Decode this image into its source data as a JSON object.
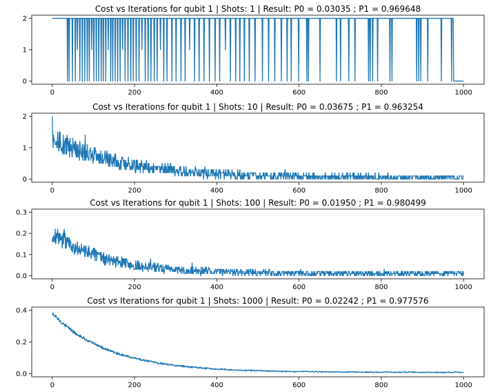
{
  "figure": {
    "background": "#ffffff",
    "line_color": "#1f77b4"
  },
  "chart_data": [
    {
      "type": "line",
      "title": "Cost vs Iterations for qubit 1 | Shots: 1 | Result: P0 = 0.03035 ; P1 = 0.969648",
      "xlabel": "",
      "ylabel": "",
      "xlim": [
        0,
        1000
      ],
      "ylim": [
        0,
        2
      ],
      "xticks": [
        0,
        200,
        400,
        600,
        800,
        1000
      ],
      "yticks": [
        0,
        1,
        2
      ],
      "grid": false,
      "series": [
        {
          "description": "cost alternates between 2 and 0 (spikes down to 0, occasionally 1); stays at 2 until ~36, then frequent 0 values, sparser after ~500, ends at 0 after ~980",
          "points": [
            [
              0,
              2
            ],
            [
              36,
              2
            ],
            [
              37,
              0
            ],
            [
              38,
              2
            ],
            [
              40,
              2
            ],
            [
              41,
              0
            ],
            [
              42,
              2
            ],
            [
              48,
              2
            ],
            [
              49,
              0
            ],
            [
              50,
              2
            ],
            [
              55,
              2
            ],
            [
              56,
              0
            ],
            [
              57,
              2
            ],
            [
              60,
              2
            ],
            [
              61,
              1
            ],
            [
              62,
              2
            ],
            [
              66,
              2
            ],
            [
              67,
              0
            ],
            [
              68,
              2
            ],
            [
              72,
              2
            ],
            [
              73,
              0
            ],
            [
              74,
              2
            ],
            [
              78,
              2
            ],
            [
              79,
              0
            ],
            [
              80,
              2
            ],
            [
              84,
              2
            ],
            [
              85,
              0
            ],
            [
              86,
              2
            ],
            [
              89,
              2
            ],
            [
              90,
              0
            ],
            [
              91,
              2
            ],
            [
              95,
              2
            ],
            [
              96,
              1
            ],
            [
              97,
              2
            ],
            [
              100,
              2
            ],
            [
              101,
              0
            ],
            [
              102,
              2
            ],
            [
              106,
              2
            ],
            [
              107,
              0
            ],
            [
              108,
              2
            ],
            [
              112,
              2
            ],
            [
              113,
              0
            ],
            [
              114,
              2
            ],
            [
              118,
              2
            ],
            [
              119,
              0
            ],
            [
              120,
              2
            ],
            [
              123,
              2
            ],
            [
              124,
              0
            ],
            [
              125,
              2
            ],
            [
              129,
              2
            ],
            [
              130,
              0
            ],
            [
              131,
              2
            ],
            [
              135,
              2
            ],
            [
              136,
              1
            ],
            [
              137,
              2
            ],
            [
              141,
              2
            ],
            [
              142,
              0
            ],
            [
              143,
              2
            ],
            [
              146,
              2
            ],
            [
              147,
              0
            ],
            [
              148,
              2
            ],
            [
              152,
              2
            ],
            [
              153,
              0
            ],
            [
              154,
              2
            ],
            [
              158,
              2
            ],
            [
              159,
              0
            ],
            [
              160,
              2
            ],
            [
              164,
              2
            ],
            [
              165,
              0
            ],
            [
              166,
              2
            ],
            [
              170,
              2
            ],
            [
              171,
              1
            ],
            [
              172,
              2
            ],
            [
              176,
              2
            ],
            [
              177,
              0
            ],
            [
              178,
              2
            ],
            [
              183,
              2
            ],
            [
              184,
              0
            ],
            [
              185,
              2
            ],
            [
              190,
              2
            ],
            [
              191,
              0
            ],
            [
              192,
              2
            ],
            [
              196,
              2
            ],
            [
              197,
              0
            ],
            [
              198,
              2
            ],
            [
              203,
              2
            ],
            [
              204,
              0
            ],
            [
              205,
              2
            ],
            [
              210,
              2
            ],
            [
              211,
              0
            ],
            [
              212,
              2
            ],
            [
              217,
              2
            ],
            [
              218,
              1
            ],
            [
              219,
              2
            ],
            [
              225,
              2
            ],
            [
              226,
              0
            ],
            [
              227,
              2
            ],
            [
              232,
              2
            ],
            [
              233,
              0
            ],
            [
              234,
              2
            ],
            [
              239,
              2
            ],
            [
              240,
              0
            ],
            [
              241,
              2
            ],
            [
              247,
              2
            ],
            [
              248,
              0
            ],
            [
              249,
              2
            ],
            [
              254,
              2
            ],
            [
              255,
              0
            ],
            [
              256,
              2
            ],
            [
              262,
              2
            ],
            [
              263,
              1
            ],
            [
              264,
              2
            ],
            [
              270,
              2
            ],
            [
              271,
              0
            ],
            [
              272,
              2
            ],
            [
              278,
              2
            ],
            [
              279,
              0
            ],
            [
              280,
              2
            ],
            [
              290,
              2
            ],
            [
              291,
              0
            ],
            [
              292,
              2
            ],
            [
              300,
              2
            ],
            [
              301,
              0
            ],
            [
              302,
              2
            ],
            [
              312,
              2
            ],
            [
              313,
              0
            ],
            [
              314,
              2
            ],
            [
              322,
              2
            ],
            [
              323,
              0
            ],
            [
              324,
              2
            ],
            [
              333,
              2
            ],
            [
              334,
              1
            ],
            [
              335,
              2
            ],
            [
              345,
              2
            ],
            [
              346,
              0
            ],
            [
              347,
              2
            ],
            [
              356,
              2
            ],
            [
              357,
              0
            ],
            [
              358,
              2
            ],
            [
              368,
              2
            ],
            [
              369,
              0
            ],
            [
              370,
              2
            ],
            [
              381,
              2
            ],
            [
              382,
              0
            ],
            [
              383,
              2
            ],
            [
              395,
              2
            ],
            [
              396,
              0
            ],
            [
              397,
              2
            ],
            [
              406,
              2
            ],
            [
              407,
              0
            ],
            [
              408,
              2
            ],
            [
              420,
              2
            ],
            [
              421,
              1
            ],
            [
              422,
              2
            ],
            [
              432,
              2
            ],
            [
              433,
              0
            ],
            [
              434,
              2
            ],
            [
              445,
              2
            ],
            [
              446,
              0
            ],
            [
              447,
              2
            ],
            [
              455,
              2
            ],
            [
              456,
              0
            ],
            [
              457,
              2
            ],
            [
              466,
              2
            ],
            [
              467,
              0
            ],
            [
              468,
              2
            ],
            [
              478,
              2
            ],
            [
              479,
              0
            ],
            [
              480,
              2
            ],
            [
              492,
              2
            ],
            [
              493,
              0
            ],
            [
              494,
              2
            ],
            [
              510,
              2
            ],
            [
              511,
              0
            ],
            [
              512,
              2
            ],
            [
              525,
              2
            ],
            [
              526,
              0
            ],
            [
              527,
              2
            ],
            [
              540,
              2
            ],
            [
              541,
              0
            ],
            [
              542,
              2
            ],
            [
              556,
              2
            ],
            [
              557,
              0
            ],
            [
              558,
              2
            ],
            [
              570,
              2
            ],
            [
              571,
              0
            ],
            [
              572,
              2
            ],
            [
              580,
              2
            ],
            [
              581,
              0
            ],
            [
              582,
              2
            ],
            [
              598,
              2
            ],
            [
              599,
              0
            ],
            [
              600,
              2
            ],
            [
              618,
              2
            ],
            [
              619,
              0
            ],
            [
              620,
              2
            ],
            [
              622,
              2
            ],
            [
              623,
              0
            ],
            [
              624,
              2
            ],
            [
              650,
              2
            ],
            [
              651,
              0
            ],
            [
              652,
              2
            ],
            [
              690,
              2
            ],
            [
              691,
              0
            ],
            [
              692,
              2
            ],
            [
              700,
              2
            ],
            [
              701,
              0
            ],
            [
              702,
              2
            ],
            [
              720,
              2
            ],
            [
              721,
              0
            ],
            [
              722,
              2
            ],
            [
              735,
              2
            ],
            [
              736,
              0
            ],
            [
              737,
              2
            ],
            [
              768,
              2
            ],
            [
              769,
              0
            ],
            [
              770,
              2
            ],
            [
              772,
              2
            ],
            [
              773,
              0
            ],
            [
              774,
              2
            ],
            [
              778,
              2
            ],
            [
              779,
              0
            ],
            [
              780,
              2
            ],
            [
              790,
              2
            ],
            [
              791,
              0
            ],
            [
              792,
              2
            ],
            [
              820,
              2
            ],
            [
              821,
              0
            ],
            [
              822,
              2
            ],
            [
              825,
              2
            ],
            [
              826,
              0
            ],
            [
              827,
              2
            ],
            [
              885,
              2
            ],
            [
              886,
              0
            ],
            [
              887,
              2
            ],
            [
              890,
              2
            ],
            [
              891,
              0
            ],
            [
              892,
              2
            ],
            [
              895,
              2
            ],
            [
              896,
              0
            ],
            [
              897,
              2
            ],
            [
              912,
              2
            ],
            [
              913,
              0
            ],
            [
              914,
              2
            ],
            [
              945,
              2
            ],
            [
              946,
              0
            ],
            [
              947,
              2
            ],
            [
              970,
              2
            ],
            [
              971,
              0
            ],
            [
              972,
              2
            ],
            [
              975,
              2
            ],
            [
              976,
              0
            ],
            [
              1000,
              0
            ]
          ]
        }
      ]
    },
    {
      "type": "line",
      "title": "Cost vs Iterations for qubit 1 | Shots: 10 | Result: P0 = 0.03675 ; P1 = 0.963254",
      "xlabel": "",
      "ylabel": "",
      "xlim": [
        0,
        1000
      ],
      "ylim": [
        0,
        2
      ],
      "xticks": [
        0,
        200,
        400,
        600,
        800,
        1000
      ],
      "yticks": [
        0,
        1,
        2
      ],
      "grid": false,
      "series": [
        {
          "description": "noisy cost starting at 2.0, decaying to near 0 by ~600 iterations, occasional spikes to ~0.4",
          "trend": {
            "start": 1.3,
            "end": 0.04,
            "decay_iters": 180,
            "noise": 0.35,
            "quantum": 0.1,
            "seed": 10,
            "n": 1001,
            "first": 2.0
          }
        }
      ]
    },
    {
      "type": "line",
      "title": "Cost vs Iterations for qubit 1 | Shots: 100 | Result: P0 = 0.01950 ; P1 = 0.980499",
      "xlabel": "",
      "ylabel": "",
      "xlim": [
        0,
        1000
      ],
      "ylim": [
        0,
        0.3
      ],
      "xticks": [
        0,
        200,
        400,
        600,
        800,
        1000
      ],
      "yticks": [
        0.0,
        0.1,
        0.2,
        0.3
      ],
      "grid": false,
      "series": [
        {
          "description": "noisy cost starting ~0.27, decaying to ~0.01 by ~500 iterations",
          "trend": {
            "start": 0.2,
            "end": 0.01,
            "decay_iters": 130,
            "noise": 0.045,
            "quantum": 0.01,
            "seed": 100,
            "n": 1001,
            "first": 0.16
          }
        }
      ]
    },
    {
      "type": "line",
      "title": "Cost vs Iterations for qubit 1 | Shots: 1000 | Result: P0 = 0.02242 ; P1 = 0.977576",
      "xlabel": "",
      "ylabel": "",
      "xlim": [
        0,
        1000
      ],
      "ylim": [
        0,
        0.4
      ],
      "xticks": [
        0,
        200,
        400,
        600,
        800,
        1000
      ],
      "yticks": [
        0.0,
        0.2,
        0.4
      ],
      "grid": false,
      "series": [
        {
          "description": "cost starting ~0.38, smoothly decaying with small noise to ~0.01 by ~600 iterations",
          "trend": {
            "start": 0.38,
            "end": 0.008,
            "decay_iters": 140,
            "noise": 0.012,
            "quantum": 0.001,
            "seed": 1000,
            "n": 1001,
            "first": 0.37
          }
        }
      ]
    }
  ]
}
